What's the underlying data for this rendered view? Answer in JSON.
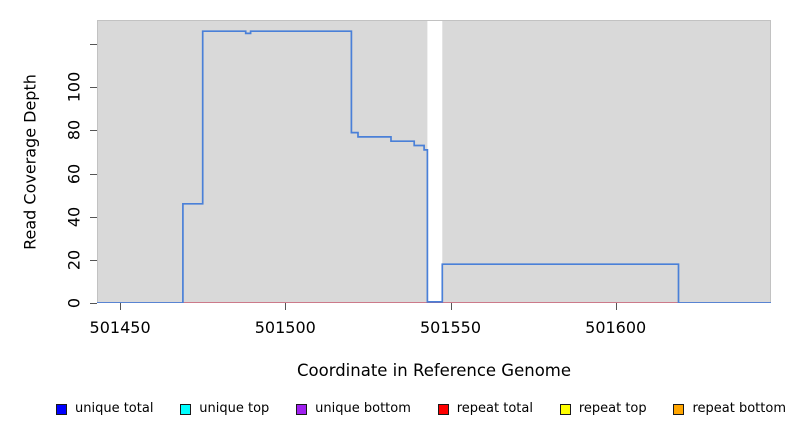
{
  "figure": {
    "background": "#ffffff",
    "plot_bg": "#d9d9d9",
    "plot_border": "#c2c2c2",
    "gap_band_color": "#ffffff",
    "tick_color": "#555555"
  },
  "chart_data": {
    "type": "line",
    "subtype": "step",
    "title": "",
    "xlabel": "Coordinate in Reference Genome",
    "ylabel": "Read Coverage Depth",
    "xlim": [
      501443,
      501647
    ],
    "ylim": [
      0,
      131.2
    ],
    "grid": false,
    "legend_position": "bottom",
    "x_ticks": [
      {
        "value": 501450,
        "label": "501450"
      },
      {
        "value": 501500,
        "label": "501500"
      },
      {
        "value": 501550,
        "label": "501550"
      },
      {
        "value": 501600,
        "label": "501600"
      }
    ],
    "y_ticks": [
      {
        "value": 0,
        "label": "0"
      },
      {
        "value": 20,
        "label": "20"
      },
      {
        "value": 40,
        "label": "40"
      },
      {
        "value": 60,
        "label": "60"
      },
      {
        "value": 80,
        "label": "80"
      },
      {
        "value": 100,
        "label": "100"
      },
      {
        "value": 120,
        "label": ""
      }
    ],
    "no_data_band": {
      "x_from": 501543,
      "x_to": 501547.5
    },
    "series": [
      {
        "name": "repeat total",
        "color": "#d25068",
        "width": 1.3,
        "points": [
          [
            501443,
            0
          ],
          [
            501647,
            0
          ]
        ]
      },
      {
        "name": "unique total",
        "color": "#4a80d8",
        "width": 1.7,
        "points": [
          [
            501443,
            0
          ],
          [
            501469,
            0
          ],
          [
            501469,
            46
          ],
          [
            501475,
            46
          ],
          [
            501475,
            126
          ],
          [
            501488,
            126
          ],
          [
            501488,
            125
          ],
          [
            501489.5,
            125
          ],
          [
            501489.5,
            126
          ],
          [
            501520,
            126
          ],
          [
            501520,
            79
          ],
          [
            501522,
            79
          ],
          [
            501522,
            77
          ],
          [
            501532,
            77
          ],
          [
            501532,
            75
          ],
          [
            501539,
            75
          ],
          [
            501539,
            73
          ],
          [
            501542,
            73
          ],
          [
            501542,
            71
          ],
          [
            501543,
            71
          ],
          [
            501543,
            0.5
          ],
          [
            501547.5,
            0.5
          ],
          [
            501547.5,
            18
          ],
          [
            501619,
            18
          ],
          [
            501619,
            0
          ],
          [
            501647,
            0
          ]
        ]
      }
    ]
  },
  "legend": {
    "items": [
      {
        "label": "unique total",
        "color": "#0000ff"
      },
      {
        "label": "unique top",
        "color": "#00ffff"
      },
      {
        "label": "unique bottom",
        "color": "#a020f0"
      },
      {
        "label": "repeat total",
        "color": "#ff0000"
      },
      {
        "label": "repeat top",
        "color": "#ffff00"
      },
      {
        "label": "repeat bottom",
        "color": "#ffa500"
      }
    ]
  }
}
